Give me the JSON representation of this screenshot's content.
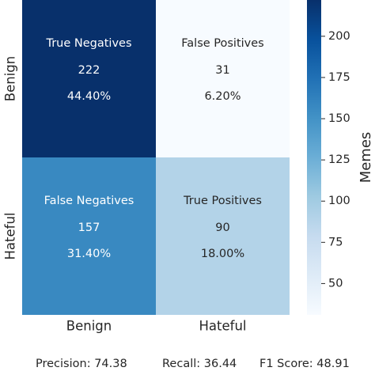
{
  "chart_data": {
    "type": "heatmap",
    "x_categories": [
      "Benign",
      "Hateful"
    ],
    "y_categories": [
      "Benign",
      "Hateful"
    ],
    "cells": [
      [
        {
          "label": "True Negatives",
          "count": 222,
          "count_text": "222",
          "percent_text": "44.40%"
        },
        {
          "label": "False Positives",
          "count": 31,
          "count_text": "31",
          "percent_text": "6.20%"
        }
      ],
      [
        {
          "label": "False Negatives",
          "count": 157,
          "count_text": "157",
          "percent_text": "31.40%"
        },
        {
          "label": "True Positives",
          "count": 90,
          "count_text": "90",
          "percent_text": "18.00%"
        }
      ]
    ],
    "colorbar": {
      "label": "Memes",
      "min": 31,
      "max": 222,
      "ticks": [
        50,
        75,
        100,
        125,
        150,
        175,
        200
      ],
      "tick_labels": [
        "50",
        "75",
        "100",
        "125",
        "150",
        "175",
        "200"
      ],
      "colormap": "Blues"
    }
  },
  "metrics": {
    "precision": "Precision: 74.38",
    "recall": "Recall: 36.44",
    "f1": "F1 Score: 48.91"
  }
}
